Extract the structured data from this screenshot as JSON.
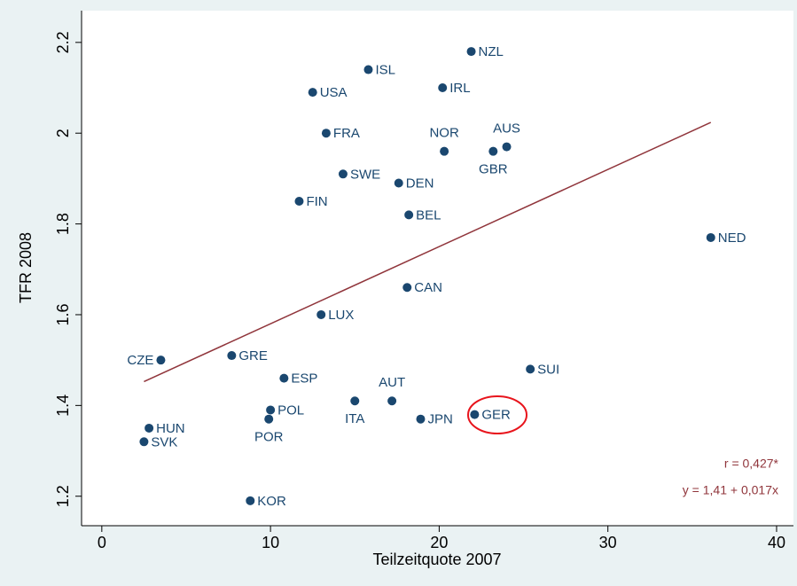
{
  "chart_data": {
    "type": "scatter",
    "xlabel": "Teilzeitquote 2007",
    "ylabel": "TFR 2008",
    "xlim": [
      -1.2,
      41
    ],
    "ylim": [
      1.135,
      2.27
    ],
    "xticks": [
      0,
      10,
      20,
      30,
      40
    ],
    "yticks": [
      1.2,
      1.4,
      1.6,
      1.8,
      2,
      2.2
    ],
    "color": "#1a476f",
    "labels": [
      "NZL",
      "ISL",
      "IRL",
      "USA",
      "FRA",
      "NOR",
      "GBR",
      "AUS",
      "SWE",
      "DEN",
      "FIN",
      "BEL",
      "NED",
      "CAN",
      "LUX",
      "CZE",
      "GRE",
      "SUI",
      "ESP",
      "AUT",
      "ITA",
      "POL",
      "POR",
      "JPN",
      "GER",
      "HUN",
      "SVK",
      "KOR"
    ],
    "x": [
      21.9,
      15.8,
      20.2,
      12.5,
      13.3,
      20.3,
      23.2,
      24.0,
      14.3,
      17.6,
      11.7,
      18.2,
      36.1,
      18.1,
      13.0,
      3.5,
      7.7,
      25.4,
      10.8,
      17.2,
      15.0,
      10.0,
      9.9,
      18.9,
      22.1,
      2.8,
      2.5,
      8.8
    ],
    "values": [
      2.18,
      2.14,
      2.1,
      2.09,
      2.0,
      1.96,
      1.96,
      1.97,
      1.91,
      1.89,
      1.85,
      1.82,
      1.77,
      1.66,
      1.6,
      1.5,
      1.51,
      1.48,
      1.46,
      1.41,
      1.41,
      1.39,
      1.37,
      1.37,
      1.38,
      1.35,
      1.32,
      1.19
    ],
    "fit": {
      "intercept": 1.41,
      "slope": 0.017,
      "color": "#90353b",
      "label": "y = 1,41 + 0,017x"
    },
    "annotations": [
      "r = 0,427*"
    ]
  }
}
